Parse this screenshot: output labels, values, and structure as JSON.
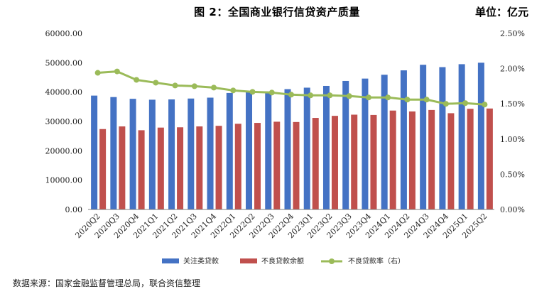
{
  "header": {
    "title": "图 2：全国商业银行信贷资产质量",
    "unit": "单位：亿元"
  },
  "footer": {
    "source": "数据来源：国家金融监督管理总局，联合资信整理"
  },
  "colors": {
    "attention_loans": "#4472C4",
    "npl_balance": "#C0504D",
    "npl_ratio": "#9BBB59",
    "axis": "#000000"
  },
  "chart_data": {
    "type": "bar",
    "title": "",
    "categories": [
      "2020Q2",
      "2020Q3",
      "2020Q4",
      "2021Q1",
      "2021Q2",
      "2021Q3",
      "2021Q4",
      "2022Q1",
      "2022Q2",
      "2022Q3",
      "2022Q4",
      "2023Q1",
      "2023Q2",
      "2023Q3",
      "2023Q4",
      "2024Q1",
      "2024Q2",
      "2024Q3",
      "2024Q4",
      "2025Q1",
      "2025Q2"
    ],
    "series": [
      {
        "name": "关注类贷款",
        "type": "bar",
        "axis": "left",
        "values": [
          38800,
          38300,
          37700,
          37400,
          37500,
          37800,
          38100,
          39700,
          40300,
          40200,
          41000,
          41500,
          42100,
          43800,
          44600,
          45900,
          47400,
          49300,
          48500,
          49500,
          50000
        ]
      },
      {
        "name": "不良贷款余额",
        "type": "bar",
        "axis": "left",
        "values": [
          27400,
          28300,
          27000,
          27900,
          28000,
          28300,
          28500,
          29200,
          29500,
          29900,
          29800,
          31200,
          31900,
          32300,
          32200,
          33700,
          33400,
          33900,
          32800,
          34300,
          34400
        ]
      },
      {
        "name": "不良贷款率（右）",
        "type": "line",
        "axis": "right",
        "values": [
          1.94,
          1.96,
          1.84,
          1.8,
          1.76,
          1.75,
          1.73,
          1.69,
          1.67,
          1.66,
          1.63,
          1.62,
          1.62,
          1.61,
          1.59,
          1.59,
          1.56,
          1.56,
          1.5,
          1.51,
          1.49
        ]
      }
    ],
    "left_axis": {
      "ylim": [
        0,
        60000
      ],
      "ticks": [
        "0.00",
        "10000.00",
        "20000.00",
        "30000.00",
        "40000.00",
        "50000.00",
        "60000.00"
      ]
    },
    "right_axis": {
      "ylim": [
        0,
        2.5
      ],
      "ticks": [
        "0.00%",
        "0.50%",
        "1.00%",
        "1.50%",
        "2.00%",
        "2.50%"
      ]
    },
    "grid": false,
    "legend": "bottom"
  }
}
